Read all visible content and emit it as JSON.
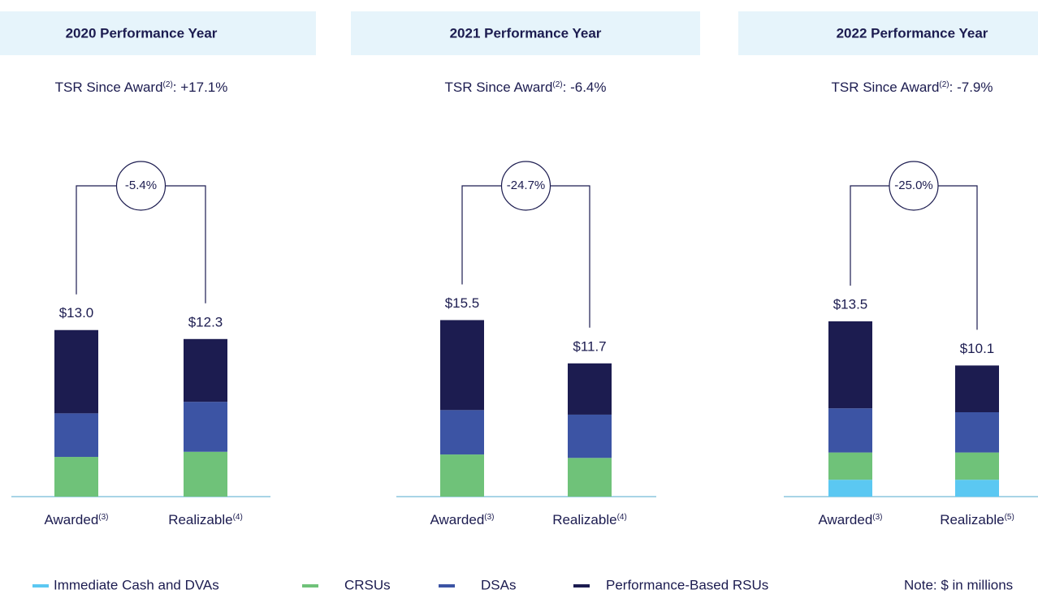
{
  "chart_data": [
    {
      "type": "stacked_bar",
      "title": "2020 Performance Year",
      "tsr": {
        "label": "TSR Since Award",
        "footnote": "(2)",
        "value": ": +17.1%"
      },
      "change": "-5.4%",
      "categories": [
        "Awarded",
        "Realizable"
      ],
      "category_notes": [
        "(3)",
        "(4)"
      ],
      "totals": [
        13.0,
        12.3
      ],
      "value_labels": [
        "$13.0",
        "$12.3"
      ],
      "ylim": [
        0,
        15.2
      ],
      "series": [
        {
          "name": "CRSUs",
          "color": "#6fc279",
          "values": [
            3.1,
            3.5
          ]
        },
        {
          "name": "DSAs",
          "color": "#3c54a4",
          "values": [
            3.4,
            3.9
          ]
        },
        {
          "name": "Performance-Based RSUs",
          "color": "#1c1c50",
          "values": [
            6.5,
            4.9
          ]
        }
      ]
    },
    {
      "type": "stacked_bar",
      "title": "2021 Performance Year",
      "tsr": {
        "label": "TSR Since Award",
        "footnote": "(2)",
        "value": ": -6.4%"
      },
      "change": "-24.7%",
      "categories": [
        "Awarded",
        "Realizable"
      ],
      "category_notes": [
        "(3)",
        "(4)"
      ],
      "totals": [
        15.5,
        11.7
      ],
      "value_labels": [
        "$15.5",
        "$11.7"
      ],
      "ylim": [
        0,
        17.1
      ],
      "series": [
        {
          "name": "CRSUs",
          "color": "#6fc279",
          "values": [
            3.7,
            3.4
          ]
        },
        {
          "name": "DSAs",
          "color": "#3c54a4",
          "values": [
            3.9,
            3.8
          ]
        },
        {
          "name": "Performance-Based RSUs",
          "color": "#1c1c50",
          "values": [
            7.9,
            4.5
          ]
        }
      ]
    },
    {
      "type": "stacked_bar",
      "title": "2022 Performance Year",
      "tsr": {
        "label": "TSR Since Award",
        "footnote": "(2)",
        "value": ": -7.9%"
      },
      "change": "-25.0%",
      "categories": [
        "Awarded",
        "Realizable"
      ],
      "category_notes": [
        "(3)",
        "(5)"
      ],
      "totals": [
        13.5,
        10.1
      ],
      "value_labels": [
        "$13.5",
        "$10.1"
      ],
      "ylim": [
        0,
        15.0
      ],
      "series": [
        {
          "name": "Immediate Cash and DVAs",
          "color": "#5bc8f2",
          "values": [
            1.3,
            1.3
          ]
        },
        {
          "name": "CRSUs",
          "color": "#6fc279",
          "values": [
            2.1,
            2.1
          ]
        },
        {
          "name": "DSAs",
          "color": "#3c54a4",
          "values": [
            3.4,
            3.1
          ]
        },
        {
          "name": "Performance-Based RSUs",
          "color": "#1c1c50",
          "values": [
            6.7,
            3.6
          ]
        }
      ]
    }
  ],
  "note": "Note: $ in millions"
}
